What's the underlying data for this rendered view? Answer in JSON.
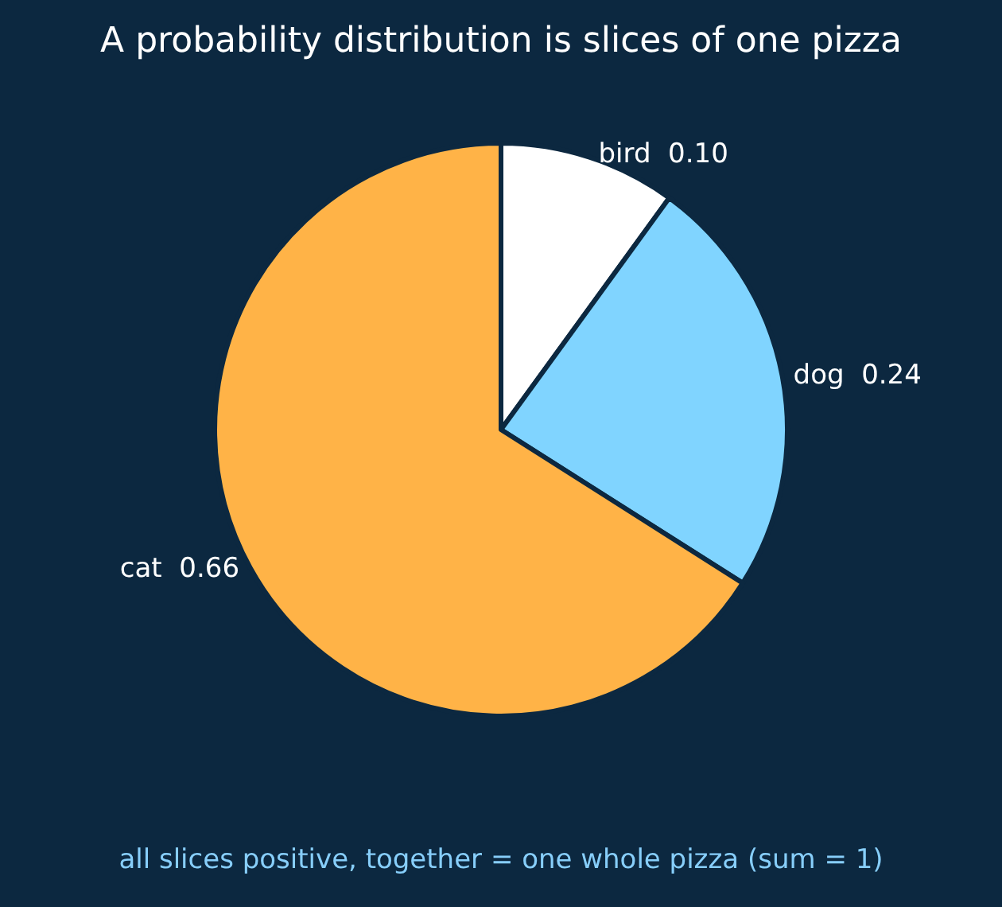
{
  "chart_data": {
    "type": "pie",
    "title": "A probability distribution is slices of one pizza",
    "categories": [
      "bird",
      "dog",
      "cat"
    ],
    "values": [
      0.1,
      0.24,
      0.66
    ],
    "value_labels": [
      "0.10",
      "0.24",
      "0.66"
    ],
    "colors": [
      "#ffffff",
      "#80d4ff",
      "#ffb347"
    ],
    "annotations": [
      "all slices positive, together = one whole pizza (sum = 1)"
    ],
    "legend": false
  }
}
